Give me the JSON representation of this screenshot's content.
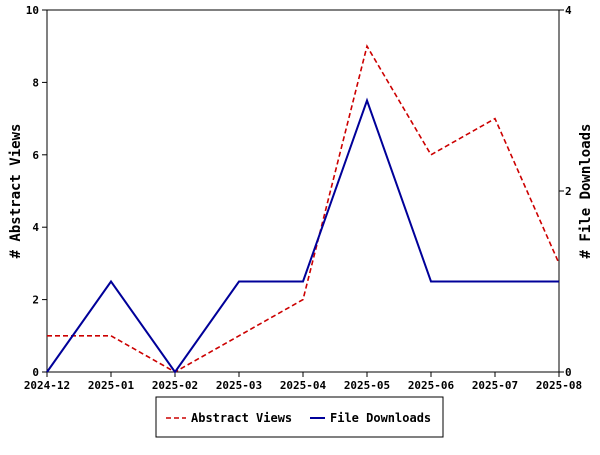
{
  "chart_data": {
    "type": "line",
    "x_categories": [
      "2024-12",
      "2025-01",
      "2025-02",
      "2025-03",
      "2025-04",
      "2025-05",
      "2025-06",
      "2025-07",
      "2025-08"
    ],
    "left_axis": {
      "label": "# Abstract Views",
      "ylim": [
        0,
        10
      ],
      "ticks": [
        "0",
        "2",
        "4",
        "6",
        "8",
        "10"
      ]
    },
    "right_axis": {
      "label": "# File Downloads",
      "ylim": [
        0,
        4
      ],
      "ticks": [
        "0",
        "2",
        "4"
      ]
    },
    "series": [
      {
        "name": "Abstract Views",
        "axis": "left",
        "color": "#cc0000",
        "style": "dashed",
        "values": [
          1,
          1,
          0,
          1,
          2,
          9,
          6,
          7,
          3
        ]
      },
      {
        "name": "File Downloads",
        "axis": "right",
        "color": "#000099",
        "style": "solid",
        "values": [
          0,
          1,
          0,
          1,
          1,
          3,
          1,
          1,
          1
        ]
      }
    ],
    "grid": false,
    "legend_position": "bottom-center"
  }
}
